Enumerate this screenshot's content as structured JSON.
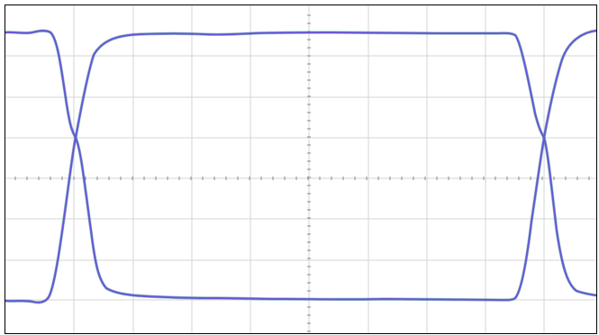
{
  "display": {
    "background": "#ffffff",
    "border_color": "#000000",
    "grid_color": "#d4d4d4",
    "axis_tick_color": "#888888",
    "grid": true
  },
  "chart_data": {
    "type": "line",
    "grid": true,
    "traces": [
      {
        "color": "#6a55d8",
        "shadow_color": "#2a8a8a",
        "role": "eye-diagram-upper-envelope"
      },
      {
        "color": "#6a55d8",
        "shadow_color": "#2a8a8a",
        "role": "eye-diagram-lower-envelope"
      }
    ]
  }
}
